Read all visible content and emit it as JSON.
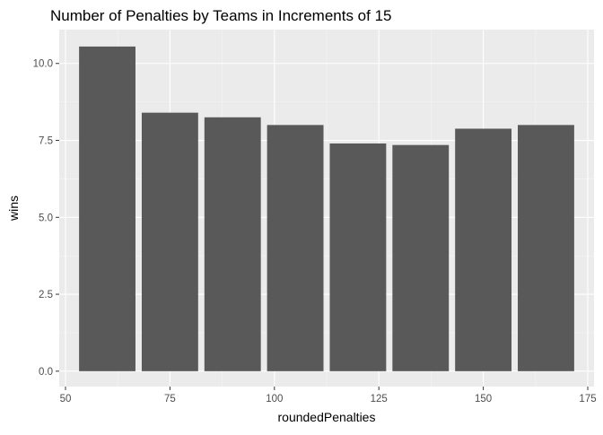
{
  "chart_data": {
    "type": "bar",
    "title": "Number of Penalties by Teams in Increments of 15",
    "xlabel": "roundedPenalties",
    "ylabel": "wins",
    "x": [
      60,
      75,
      90,
      105,
      120,
      135,
      150,
      165
    ],
    "values": [
      10.55,
      8.4,
      8.25,
      8.0,
      7.4,
      7.35,
      7.88,
      8.0
    ],
    "bar_width": 13.5,
    "xlim": [
      48.5,
      176.5
    ],
    "ylim": [
      -0.5,
      11.1
    ],
    "xticks": [
      50,
      75,
      100,
      125,
      150,
      175
    ],
    "yticks": [
      0.0,
      2.5,
      5.0,
      7.5,
      10.0
    ],
    "ytick_labels": [
      "0.0",
      "2.5",
      "5.0",
      "7.5",
      "10.0"
    ],
    "grid": true,
    "colors": {
      "bar": "#595959",
      "panel": "#ebebeb",
      "grid_major": "#ffffff",
      "grid_minor": "#f5f5f5",
      "tick_text": "#4d4d4d",
      "title_text": "#000000"
    }
  }
}
